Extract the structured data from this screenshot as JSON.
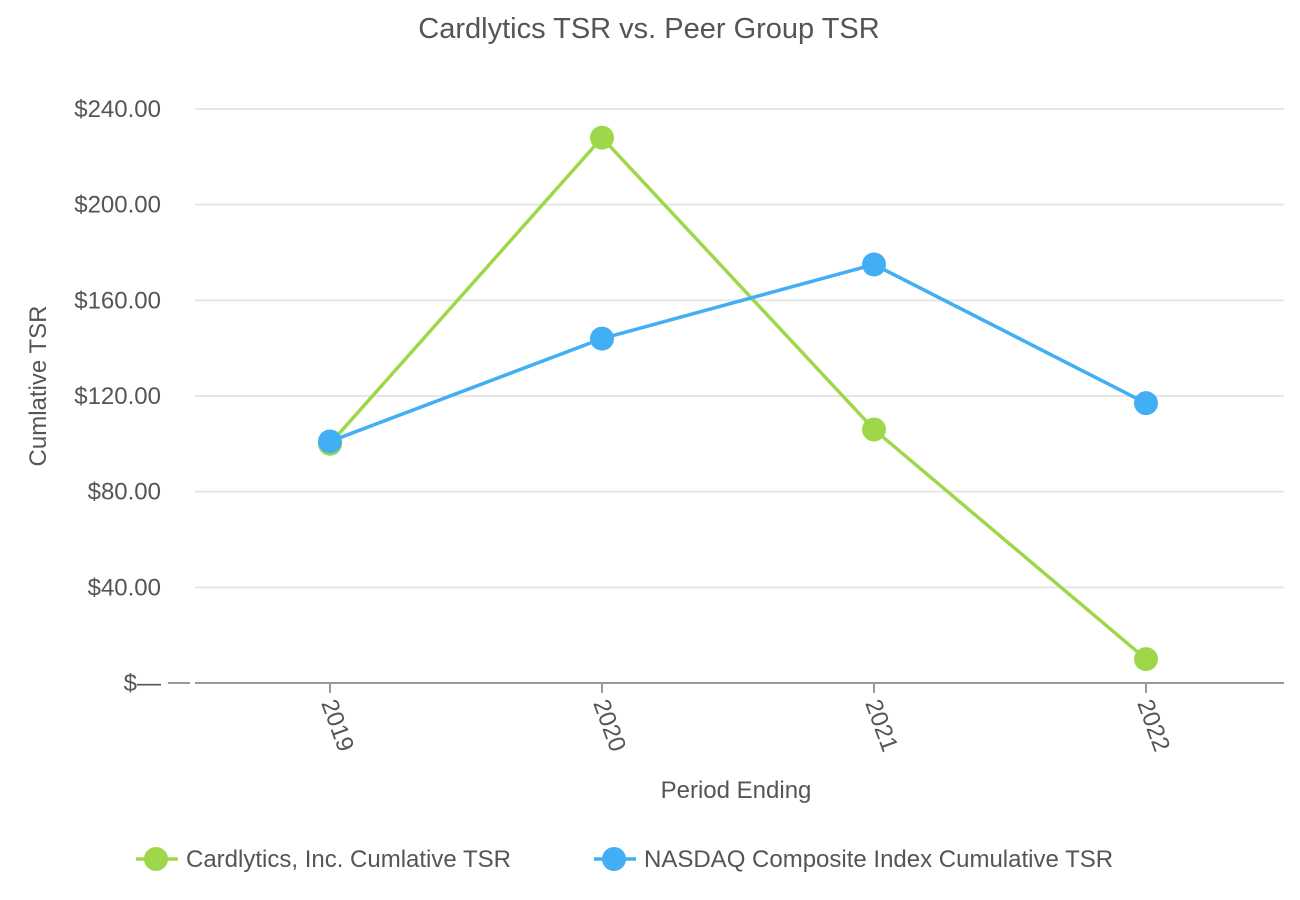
{
  "chart_data": {
    "type": "line",
    "title": "Cardlytics TSR vs. Peer Group TSR",
    "xlabel": "Period Ending",
    "ylabel": "Cumlative TSR",
    "categories": [
      "2019",
      "2020",
      "2021",
      "2022"
    ],
    "ylim": [
      0,
      240
    ],
    "yticks": [
      0,
      40,
      80,
      120,
      160,
      200,
      240
    ],
    "ytick_labels": [
      "$—",
      "$40.00",
      "$80.00",
      "$120.00",
      "$160.00",
      "$200.00",
      "$240.00"
    ],
    "series": [
      {
        "name": "Cardlytics, Inc.  Cumlative TSR",
        "color": "#9ed84a",
        "values": [
          100,
          228,
          106,
          10
        ]
      },
      {
        "name": "NASDAQ Composite Index Cumulative TSR",
        "color": "#42aef4",
        "values": [
          101,
          144,
          175,
          117
        ]
      }
    ],
    "grid": true,
    "legend": "bottom"
  }
}
